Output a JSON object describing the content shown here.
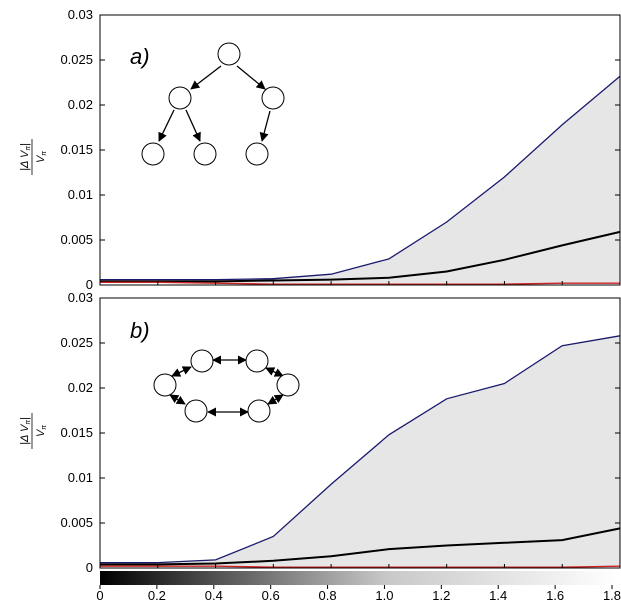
{
  "chart_data": [
    {
      "type": "line",
      "panel_label": "a)",
      "ylabel_numerator": "|Δ V",
      "ylabel_sub": "π",
      "ylabel_denominator": "V",
      "x": [
        0,
        0.2,
        0.4,
        0.6,
        0.8,
        1.0,
        1.2,
        1.4,
        1.6,
        1.8
      ],
      "xlim": [
        0,
        1.8
      ],
      "ylim": [
        0,
        0.03
      ],
      "yticks": [
        "0",
        "0.005",
        "0.01",
        "0.015",
        "0.02",
        "0.025",
        "0.03"
      ],
      "series": [
        {
          "values": [
            0.0006,
            0.0006,
            0.0006,
            0.0007,
            0.0012,
            0.0029,
            0.007,
            0.012,
            0.0178,
            0.0232
          ],
          "color": "#1a1a6e"
        },
        {
          "values": [
            0.0004,
            0.0004,
            0.0004,
            0.0005,
            0.0006,
            0.0008,
            0.0015,
            0.0028,
            0.0044,
            0.0059
          ],
          "color": "#000000"
        },
        {
          "values": [
            0.0003,
            0.0003,
            0.0002,
            0.0001,
            0.0001,
            0.0001,
            0.0001,
            0.0001,
            0.0002,
            0.0002
          ],
          "color": "#cc2222"
        }
      ],
      "inset": "tree",
      "fill_between": "upper-and-lower",
      "fill_color": "#e6e6e6"
    },
    {
      "type": "line",
      "panel_label": "b)",
      "ylabel_numerator": "|Δ V",
      "ylabel_sub": "π",
      "ylabel_denominator": "V",
      "x": [
        0,
        0.2,
        0.4,
        0.6,
        0.8,
        1.0,
        1.2,
        1.4,
        1.6,
        1.8
      ],
      "xlim": [
        0,
        1.8
      ],
      "ylim": [
        0,
        0.03
      ],
      "yticks": [
        "0",
        "0.005",
        "0.01",
        "0.015",
        "0.02",
        "0.025",
        "0.03"
      ],
      "series": [
        {
          "values": [
            0.0006,
            0.0006,
            0.0009,
            0.0035,
            0.0093,
            0.0148,
            0.0188,
            0.0205,
            0.0247,
            0.0258
          ],
          "color": "#1a1a6e"
        },
        {
          "values": [
            0.0004,
            0.0004,
            0.0005,
            0.0008,
            0.0013,
            0.0021,
            0.0025,
            0.0028,
            0.0031,
            0.0044
          ],
          "color": "#000000"
        },
        {
          "values": [
            0.0002,
            0.0002,
            0.0002,
            0.0001,
            0.0001,
            0.0001,
            0.0001,
            0.0001,
            0.0001,
            0.0002
          ],
          "color": "#cc2222"
        }
      ],
      "inset": "ring",
      "fill_between": "upper-and-lower",
      "fill_color": "#e6e6e6"
    }
  ],
  "colorbar": {
    "ticks": [
      "0",
      "0.2",
      "0.4",
      "0.6",
      "0.8",
      "1.0",
      "1.2",
      "1.4",
      "1.6",
      "1.8"
    ],
    "start_color": "#000000",
    "end_color": "#ffffff"
  }
}
